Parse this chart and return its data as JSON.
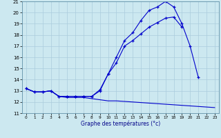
{
  "xlabel": "Graphe des températures (°c)",
  "bg_color": "#cce8f0",
  "grid_color": "#aaccdd",
  "line_color": "#0000cc",
  "xlim": [
    -0.5,
    23.5
  ],
  "ylim": [
    11,
    21
  ],
  "yticks": [
    11,
    12,
    13,
    14,
    15,
    16,
    17,
    18,
    19,
    20,
    21
  ],
  "xticks": [
    0,
    1,
    2,
    3,
    4,
    5,
    6,
    7,
    8,
    9,
    10,
    11,
    12,
    13,
    14,
    15,
    16,
    17,
    18,
    19,
    20,
    21,
    22,
    23
  ],
  "curve1_x": [
    0,
    1,
    2,
    3,
    4,
    5,
    6,
    7,
    8,
    9,
    10,
    11,
    12,
    13,
    14,
    15,
    16,
    17,
    18,
    19,
    20,
    21
  ],
  "curve1_y": [
    13.2,
    12.9,
    12.9,
    13.0,
    12.5,
    12.5,
    12.5,
    12.5,
    12.5,
    13.1,
    14.5,
    16.0,
    17.5,
    18.2,
    19.3,
    20.2,
    20.5,
    21.0,
    20.5,
    19.0,
    17.0,
    14.2
  ],
  "curve2_x": [
    0,
    1,
    2,
    3,
    4,
    5,
    6,
    7,
    8,
    9,
    10,
    11,
    12,
    13,
    14,
    15,
    16,
    17,
    18,
    19
  ],
  "curve2_y": [
    13.2,
    12.9,
    12.9,
    13.0,
    12.5,
    12.5,
    12.5,
    12.5,
    12.5,
    13.0,
    14.5,
    15.5,
    17.0,
    17.5,
    18.1,
    18.7,
    19.1,
    19.5,
    19.6,
    18.7
  ],
  "curve3_x": [
    0,
    1,
    2,
    3,
    4,
    5,
    6,
    7,
    8,
    9,
    10,
    11,
    12,
    13,
    14,
    15,
    16,
    17,
    18,
    19,
    20,
    21,
    22,
    23
  ],
  "curve3_y": [
    13.2,
    12.9,
    12.9,
    13.0,
    12.5,
    12.4,
    12.4,
    12.4,
    12.3,
    12.2,
    12.1,
    12.1,
    12.05,
    12.0,
    11.95,
    11.9,
    11.85,
    11.8,
    11.75,
    11.7,
    11.65,
    11.6,
    11.55,
    11.5
  ]
}
